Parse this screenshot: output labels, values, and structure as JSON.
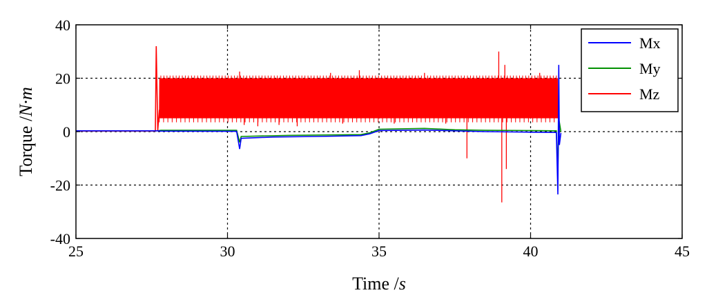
{
  "chart_data": {
    "type": "line",
    "xlabel": "Time /",
    "xlabel_unit": "s",
    "ylabel": "Torque /",
    "ylabel_unit": "N·m",
    "xlim": [
      25,
      45
    ],
    "ylim": [
      -40,
      40
    ],
    "xticks": [
      25,
      30,
      35,
      40,
      45
    ],
    "yticks": [
      -40,
      -20,
      0,
      20,
      40
    ],
    "grid": true,
    "legend_position": "top-right",
    "series": [
      {
        "name": "Mx",
        "color": "#0000ff",
        "points": [
          [
            25,
            0.3
          ],
          [
            27.7,
            0.3
          ],
          [
            27.8,
            0.2
          ],
          [
            30.3,
            0.1
          ],
          [
            30.4,
            -6.5
          ],
          [
            30.45,
            -2.5
          ],
          [
            31.5,
            -2.0
          ],
          [
            33.0,
            -1.8
          ],
          [
            34.4,
            -1.5
          ],
          [
            34.7,
            -0.8
          ],
          [
            35.0,
            0.4
          ],
          [
            36.5,
            0.6
          ],
          [
            37.5,
            0.3
          ],
          [
            38.5,
            0.0
          ],
          [
            40.0,
            -0.2
          ],
          [
            40.85,
            -0.3
          ],
          [
            40.9,
            -23.5
          ],
          [
            40.93,
            25.0
          ],
          [
            40.95,
            -5.0
          ],
          [
            41.0,
            -0.5
          ]
        ]
      },
      {
        "name": "My",
        "color": "#009000",
        "points": [
          [
            25,
            0.3
          ],
          [
            27.7,
            0.3
          ],
          [
            27.8,
            0.5
          ],
          [
            30.3,
            0.5
          ],
          [
            30.4,
            -4.0
          ],
          [
            30.45,
            -1.8
          ],
          [
            32.0,
            -1.4
          ],
          [
            34.4,
            -1.1
          ],
          [
            34.7,
            -0.4
          ],
          [
            35.0,
            0.9
          ],
          [
            36.5,
            1.2
          ],
          [
            37.5,
            0.7
          ],
          [
            38.5,
            0.5
          ],
          [
            40.0,
            0.4
          ],
          [
            40.85,
            0.3
          ],
          [
            40.9,
            -16.0
          ],
          [
            40.93,
            5.0
          ],
          [
            41.0,
            0.0
          ]
        ]
      },
      {
        "name": "Mz",
        "color": "#ff0000",
        "band": {
          "start": 27.75,
          "end": 40.9,
          "low": 5,
          "high": 20,
          "density": 1300
        },
        "points": [
          [
            25,
            0.2
          ],
          [
            27.62,
            0.2
          ],
          [
            27.65,
            32
          ],
          [
            27.7,
            0.5
          ],
          [
            27.75,
            8
          ],
          [
            40.9,
            8
          ],
          [
            40.95,
            0.2
          ]
        ],
        "spikes": [
          [
            30.4,
            22.5
          ],
          [
            30.55,
            2.5
          ],
          [
            31.0,
            2.0
          ],
          [
            31.7,
            2.5
          ],
          [
            32.3,
            2.0
          ],
          [
            33.4,
            22.0
          ],
          [
            33.8,
            3.0
          ],
          [
            34.35,
            23.0
          ],
          [
            35.5,
            3.0
          ],
          [
            36.5,
            22.0
          ],
          [
            37.2,
            3.0
          ],
          [
            37.9,
            -10
          ],
          [
            38.95,
            30
          ],
          [
            39.05,
            -26.5
          ],
          [
            39.15,
            25
          ],
          [
            39.2,
            -14
          ],
          [
            40.3,
            22
          ]
        ]
      }
    ]
  }
}
